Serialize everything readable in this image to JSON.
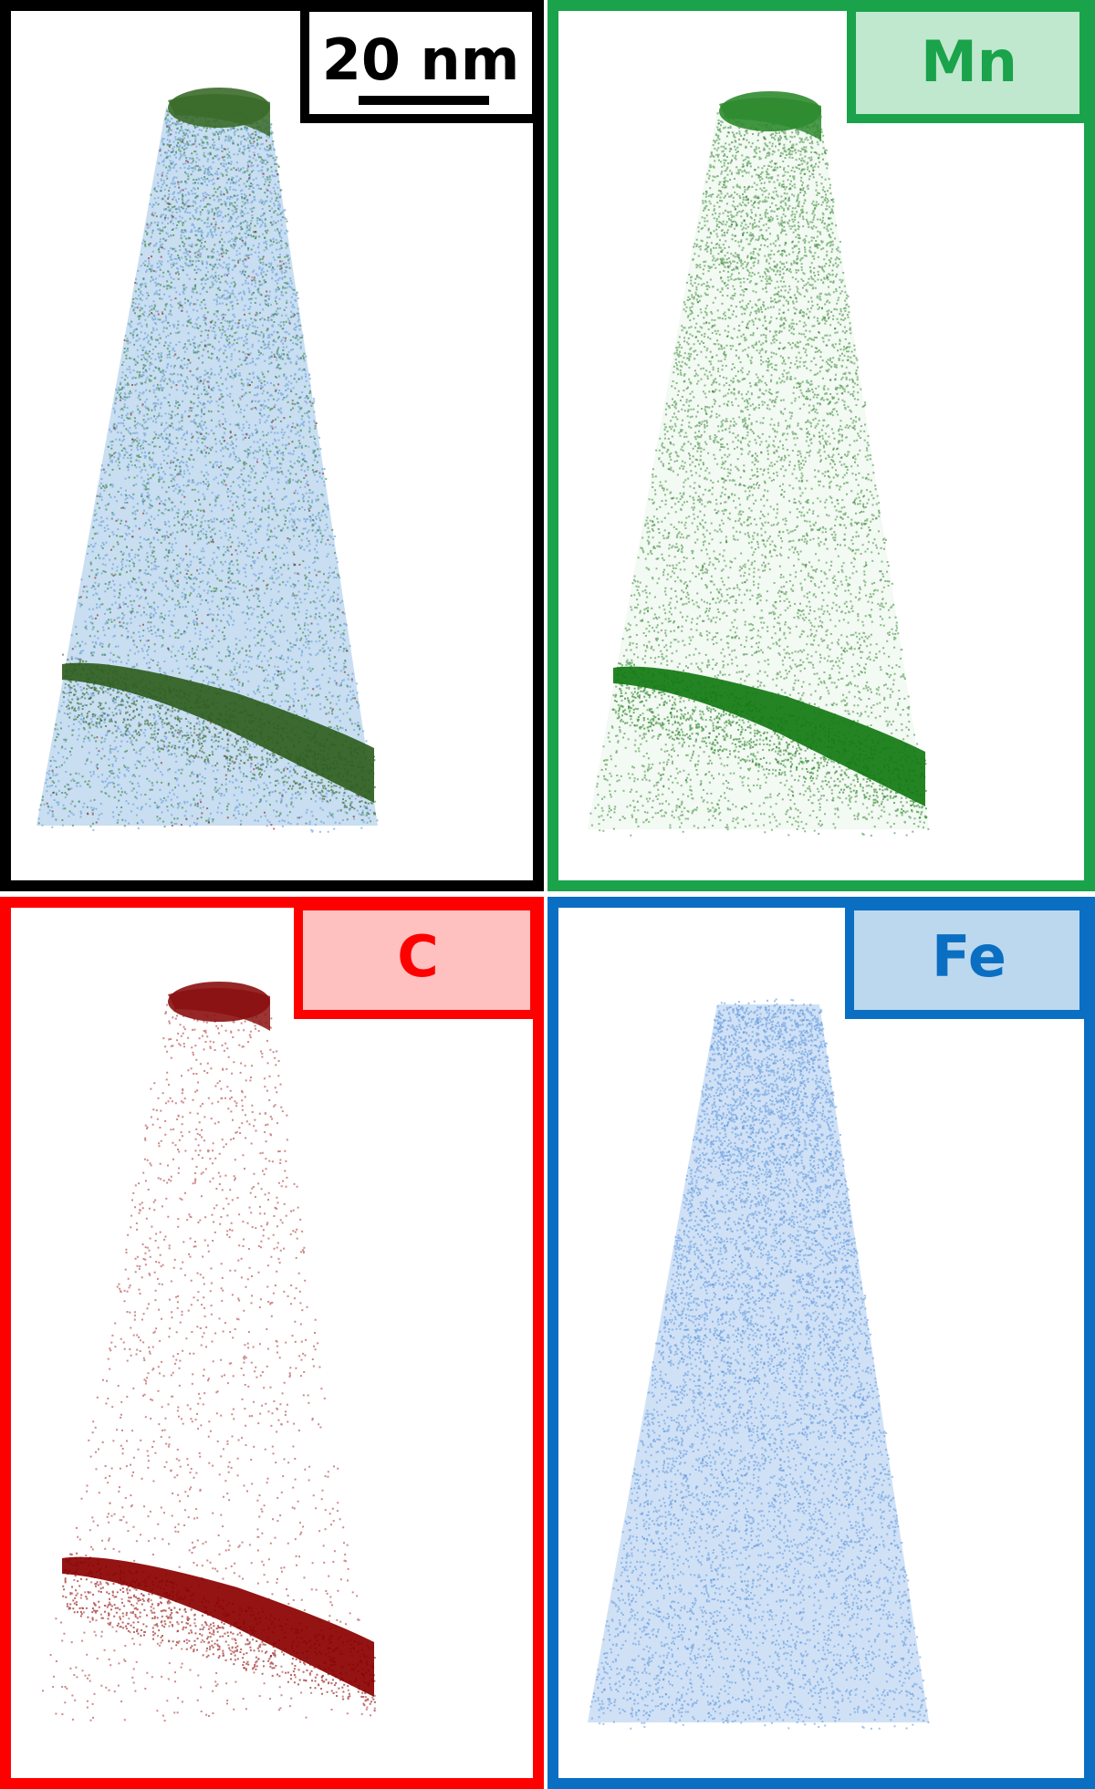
{
  "scale_bar": {
    "label": "20 nm"
  },
  "panels": [
    {
      "label": "Mn"
    },
    {
      "label": "C"
    },
    {
      "label": "Fe"
    }
  ]
}
